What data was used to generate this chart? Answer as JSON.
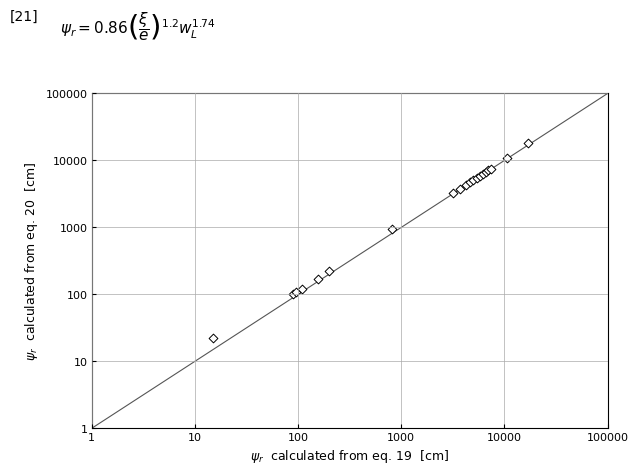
{
  "x_data": [
    15,
    90,
    95,
    110,
    155,
    200,
    820,
    3200,
    3700,
    4200,
    4600,
    5000,
    5400,
    5800,
    6200,
    6600,
    7000,
    7400,
    10500,
    17000
  ],
  "y_data": [
    22,
    100,
    107,
    122,
    170,
    220,
    950,
    3300,
    3800,
    4300,
    4700,
    5100,
    5500,
    5900,
    6300,
    6700,
    7100,
    7500,
    11000,
    18000
  ],
  "xlabel": "$\\psi_r$  calculated from eq. 19  [cm]",
  "ylabel": "$\\psi_r$  calculated from eq. 20  [cm]",
  "xlim": [
    1,
    100000
  ],
  "ylim": [
    1,
    100000
  ],
  "line_color": "#555555",
  "marker_facecolor": "#ffffff",
  "marker_edgecolor": "#000000",
  "grid_color": "#aaaaaa",
  "background_color": "#ffffff",
  "formula_label": "[21]",
  "xticks": [
    1,
    10,
    100,
    1000,
    10000,
    100000
  ],
  "yticks": [
    1,
    10,
    100,
    1000,
    10000,
    100000
  ],
  "tick_labels": [
    "1",
    "10",
    "100",
    "1000",
    "10000",
    "100000"
  ]
}
